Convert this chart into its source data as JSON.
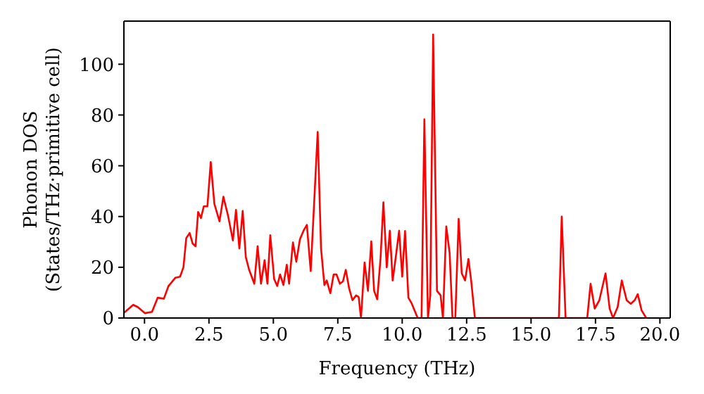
{
  "chart_data": {
    "type": "line",
    "xlabel": "Frequency (THz)",
    "ylabel": "Phonon DOS\n(States/THz·primitive cell)",
    "x": [
      -0.8,
      -0.44,
      -0.26,
      0.02,
      0.29,
      0.51,
      0.75,
      0.93,
      1.2,
      1.38,
      1.51,
      1.62,
      1.75,
      1.87,
      1.98,
      2.08,
      2.19,
      2.3,
      2.44,
      2.57,
      2.71,
      2.91,
      3.06,
      3.24,
      3.43,
      3.55,
      3.68,
      3.81,
      3.93,
      4.06,
      4.26,
      4.39,
      4.52,
      4.66,
      4.77,
      4.88,
      5.03,
      5.15,
      5.26,
      5.39,
      5.52,
      5.61,
      5.76,
      5.89,
      6.03,
      6.17,
      6.3,
      6.45,
      6.72,
      6.85,
      6.98,
      7.07,
      7.21,
      7.34,
      7.45,
      7.58,
      7.7,
      7.81,
      7.94,
      8.07,
      8.21,
      8.31,
      8.4,
      8.54,
      8.67,
      8.8,
      8.91,
      9.03,
      9.16,
      9.27,
      9.4,
      9.52,
      9.63,
      9.77,
      9.88,
      10.0,
      10.11,
      10.24,
      10.37,
      10.6,
      10.75,
      10.86,
      11.0,
      11.09,
      11.2,
      11.35,
      11.49,
      11.58,
      11.71,
      11.84,
      11.95,
      12.06,
      12.19,
      12.31,
      12.44,
      12.57,
      12.68,
      12.82,
      16.08,
      16.19,
      16.34,
      17.18,
      17.31,
      17.47,
      17.65,
      17.89,
      18.05,
      18.18,
      18.36,
      18.52,
      18.71,
      18.87,
      19.02,
      19.14,
      19.29,
      19.47
    ],
    "series": [
      {
        "color": "#ff0000",
        "values": [
          2.0,
          5.2,
          4.3,
          1.9,
          2.4,
          8.0,
          7.6,
          12.6,
          15.9,
          16.3,
          20.0,
          31.5,
          33.5,
          29.3,
          28.3,
          41.8,
          39.4,
          44.0,
          44.0,
          61.5,
          45.0,
          38.1,
          47.8,
          40.4,
          30.6,
          42.6,
          27.4,
          42.2,
          24.0,
          19.0,
          13.5,
          28.3,
          13.5,
          22.8,
          13.5,
          32.6,
          15.4,
          12.6,
          17.2,
          13.0,
          21.0,
          13.5,
          29.8,
          22.2,
          31.0,
          34.4,
          36.7,
          18.5,
          73.3,
          27.4,
          13.0,
          14.8,
          9.8,
          17.2,
          17.2,
          13.5,
          14.4,
          19.0,
          11.7,
          7.0,
          8.9,
          8.3,
          0,
          21.9,
          10.7,
          30.2,
          10.7,
          7.4,
          23.7,
          45.6,
          20.0,
          34.4,
          14.8,
          25.6,
          34.4,
          16.3,
          34.3,
          8.0,
          5.7,
          0,
          0,
          78.3,
          0,
          8.9,
          111.7,
          10.7,
          8.9,
          0,
          36.1,
          25.6,
          0,
          0,
          39.1,
          17.6,
          14.8,
          23.3,
          14.4,
          0,
          0,
          40.0,
          0,
          0,
          13.5,
          3.7,
          7.0,
          17.6,
          3.7,
          0,
          4.3,
          14.8,
          7.0,
          5.6,
          7.0,
          9.4,
          3.0,
          0
        ]
      }
    ],
    "xlim": [
      -0.8,
      20.4
    ],
    "ylim": [
      0,
      117
    ],
    "xticks": [
      {
        "value": 0,
        "label": "0.0"
      },
      {
        "value": 2.5,
        "label": "2.5"
      },
      {
        "value": 5,
        "label": "5.0"
      },
      {
        "value": 7.5,
        "label": "7.5"
      },
      {
        "value": 10,
        "label": "10.0"
      },
      {
        "value": 12.5,
        "label": "12.5"
      },
      {
        "value": 15,
        "label": "15.0"
      },
      {
        "value": 17.5,
        "label": "17.5"
      },
      {
        "value": 20,
        "label": "20.0"
      }
    ],
    "yticks": [
      0,
      20,
      40,
      60,
      80,
      100
    ]
  }
}
